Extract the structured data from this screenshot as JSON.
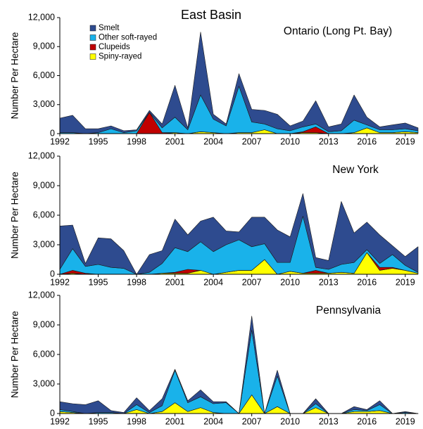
{
  "title": "East Basin",
  "chart_data": [
    {
      "type": "area",
      "stacked": true,
      "title": "Ontario (Long Pt. Bay)",
      "y_label": "Number Per Hectare",
      "legend": "upper left",
      "x": [
        1992,
        1993,
        1994,
        1995,
        1996,
        1997,
        1998,
        1999,
        2000,
        2001,
        2002,
        2003,
        2004,
        2005,
        2006,
        2007,
        2008,
        2009,
        2010,
        2011,
        2012,
        2013,
        2014,
        2015,
        2016,
        2017,
        2018,
        2019,
        2020
      ],
      "xlim": [
        1992,
        2020
      ],
      "xticks": [
        1992,
        1995,
        1998,
        2001,
        2004,
        2007,
        2010,
        2013,
        2016,
        2019
      ],
      "ylim": [
        0,
        12000
      ],
      "yticks": [
        0,
        {
          "value": 3000,
          "label": "3,000"
        },
        {
          "value": 6000,
          "label": "6,000"
        },
        {
          "value": 9000,
          "label": "9,000"
        },
        {
          "value": 12000,
          "label": "12,000"
        }
      ],
      "series": [
        {
          "name": "Spiny-rayed",
          "color": "#ffff00",
          "values": [
            0,
            0,
            0,
            0,
            0,
            0,
            0,
            0,
            0,
            100,
            0,
            200,
            100,
            0,
            100,
            100,
            400,
            0,
            0,
            100,
            100,
            0,
            0,
            100,
            600,
            100,
            100,
            200,
            100
          ]
        },
        {
          "name": "Clupeids",
          "color": "#c00000",
          "values": [
            0,
            0,
            0,
            0,
            0,
            0,
            0,
            2200,
            100,
            0,
            0,
            0,
            0,
            0,
            0,
            0,
            0,
            0,
            0,
            100,
            600,
            0,
            0,
            0,
            0,
            0,
            0,
            0,
            0
          ]
        },
        {
          "name": "Other soft-rayed",
          "color": "#19b2ea",
          "values": [
            100,
            100,
            0,
            100,
            500,
            100,
            300,
            0,
            500,
            1600,
            400,
            3800,
            1400,
            800,
            4800,
            1100,
            600,
            500,
            300,
            500,
            300,
            200,
            300,
            1300,
            300,
            300,
            300,
            300,
            200
          ]
        },
        {
          "name": "Smelt",
          "color": "#2e4b8f",
          "values": [
            1500,
            1800,
            500,
            400,
            300,
            200,
            100,
            200,
            400,
            3300,
            200,
            6500,
            500,
            200,
            1300,
            1300,
            1400,
            1500,
            500,
            600,
            2400,
            500,
            700,
            2600,
            800,
            300,
            500,
            600,
            300
          ]
        }
      ]
    },
    {
      "type": "area",
      "stacked": true,
      "title": "New York",
      "y_label": "Number Per Hectare",
      "x": [
        1992,
        1993,
        1994,
        1995,
        1996,
        1997,
        1998,
        1999,
        2000,
        2001,
        2002,
        2003,
        2004,
        2005,
        2006,
        2007,
        2008,
        2009,
        2010,
        2011,
        2012,
        2013,
        2014,
        2015,
        2016,
        2017,
        2018,
        2019,
        2020
      ],
      "xlim": [
        1992,
        2020
      ],
      "xticks": [
        1992,
        1995,
        1998,
        2001,
        2004,
        2007,
        2010,
        2013,
        2016,
        2019
      ],
      "ylim": [
        0,
        12000
      ],
      "yticks": [
        0,
        {
          "value": 3000,
          "label": "3,000"
        },
        {
          "value": 6000,
          "label": "6,000"
        },
        {
          "value": 9000,
          "label": "9,000"
        },
        {
          "value": 12000,
          "label": "12,000"
        }
      ],
      "series": [
        {
          "color": "#ffff00",
          "values": [
            0,
            100,
            0,
            0,
            0,
            0,
            0,
            0,
            100,
            100,
            100,
            400,
            0,
            200,
            400,
            400,
            1500,
            0,
            300,
            100,
            100,
            100,
            200,
            100,
            2200,
            400,
            600,
            400,
            100
          ]
        },
        {
          "color": "#c00000",
          "values": [
            0,
            300,
            100,
            0,
            0,
            0,
            0,
            0,
            0,
            100,
            400,
            0,
            0,
            0,
            0,
            0,
            0,
            0,
            0,
            0,
            300,
            0,
            0,
            0,
            0,
            300,
            100,
            0,
            0
          ]
        },
        {
          "color": "#19b2ea",
          "values": [
            500,
            2200,
            700,
            1000,
            700,
            600,
            0,
            200,
            1000,
            2500,
            1800,
            2900,
            2300,
            2800,
            3100,
            2400,
            1600,
            1200,
            900,
            5800,
            300,
            400,
            800,
            1100,
            300,
            400,
            1300,
            500,
            100
          ]
        },
        {
          "color": "#2e4b8f",
          "values": [
            4400,
            2400,
            300,
            2700,
            2900,
            1800,
            0,
            1800,
            1300,
            2900,
            1700,
            2100,
            3500,
            1400,
            800,
            3000,
            2700,
            3300,
            2600,
            2300,
            1000,
            900,
            6400,
            3000,
            2800,
            2900,
            900,
            900,
            2600
          ]
        }
      ]
    },
    {
      "type": "area",
      "stacked": true,
      "title": "Pennsylvania",
      "y_label": "Number Per Hectare",
      "x": [
        1992,
        1993,
        1994,
        1995,
        1996,
        1997,
        1998,
        1999,
        2000,
        2001,
        2002,
        2003,
        2004,
        2005,
        2006,
        2007,
        2008,
        2009,
        2010,
        2011,
        2012,
        2013,
        2014,
        2015,
        2016,
        2017,
        2018,
        2019,
        2020
      ],
      "xlim": [
        1992,
        2020
      ],
      "xticks": [
        1992,
        1995,
        1998,
        2001,
        2004,
        2007,
        2010,
        2013,
        2016,
        2019
      ],
      "ylim": [
        0,
        12000
      ],
      "yticks": [
        0,
        {
          "value": 3000,
          "label": "3,000"
        },
        {
          "value": 6000,
          "label": "6,000"
        },
        {
          "value": 9000,
          "label": "9,000"
        },
        {
          "value": 12000,
          "label": "12,000"
        }
      ],
      "series": [
        {
          "color": "#ffff00",
          "values": [
            200,
            100,
            0,
            0,
            0,
            0,
            400,
            0,
            200,
            1100,
            200,
            600,
            100,
            0,
            0,
            1900,
            0,
            700,
            0,
            0,
            600,
            0,
            0,
            200,
            200,
            300,
            0,
            0,
            0
          ]
        },
        {
          "color": "#c00000",
          "values": [
            0,
            0,
            0,
            0,
            0,
            0,
            0,
            0,
            0,
            0,
            0,
            0,
            0,
            0,
            0,
            0,
            0,
            0,
            0,
            0,
            0,
            0,
            0,
            0,
            0,
            0,
            0,
            0,
            0
          ]
        },
        {
          "color": "#19b2ea",
          "values": [
            200,
            100,
            0,
            100,
            100,
            0,
            500,
            100,
            600,
            3300,
            900,
            1100,
            900,
            1100,
            0,
            6600,
            0,
            3100,
            0,
            0,
            400,
            0,
            0,
            200,
            100,
            600,
            0,
            100,
            0
          ]
        },
        {
          "color": "#2e4b8f",
          "values": [
            800,
            800,
            900,
            1200,
            200,
            100,
            700,
            200,
            700,
            100,
            200,
            700,
            200,
            100,
            0,
            1400,
            0,
            600,
            0,
            0,
            500,
            0,
            0,
            300,
            100,
            400,
            0,
            100,
            0
          ]
        }
      ]
    }
  ]
}
